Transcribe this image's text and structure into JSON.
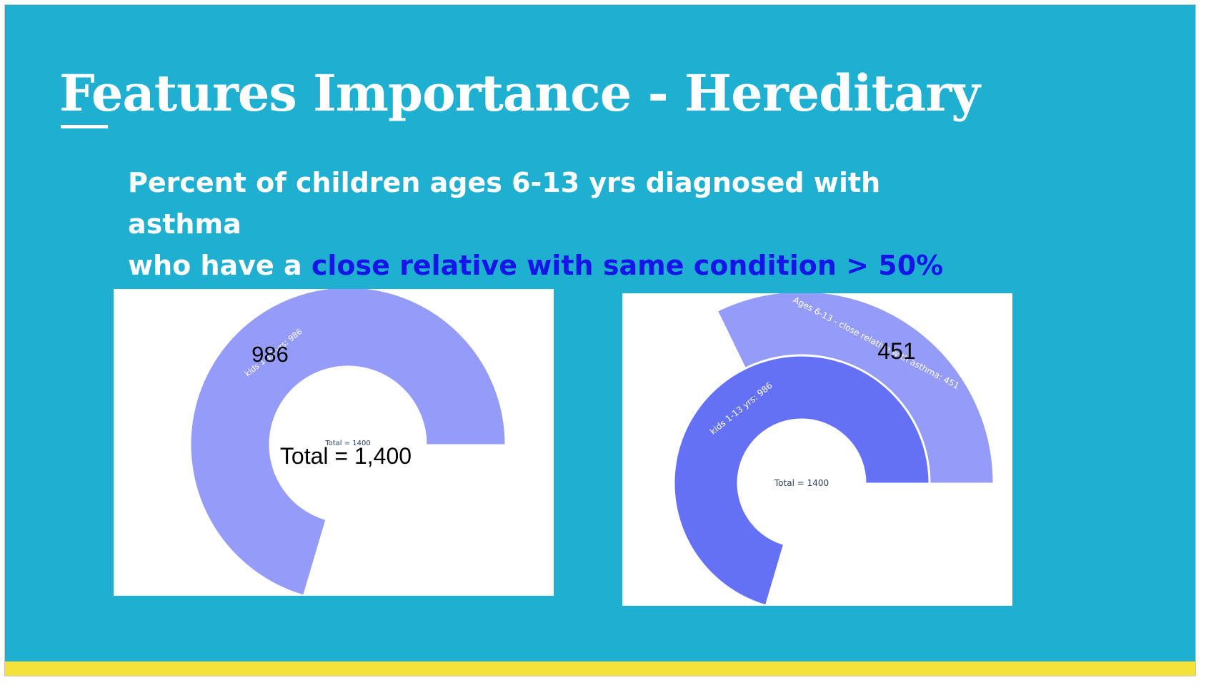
{
  "slide": {
    "title": "Features Importance - Hereditary",
    "subtitle_line1": "Percent of children ages 6-13 yrs diagnosed with asthma",
    "subtitle_line2_prefix": "who have a ",
    "subtitle_line2_highlight": "close relative with same condition > 50%"
  },
  "colors": {
    "background": "#1fafd1",
    "highlight": "#1515e8",
    "footer": "#f3e23a",
    "ring_light": "#959cf7",
    "ring_dark": "#6571f4"
  },
  "chart_data": [
    {
      "type": "pie",
      "subtype": "sunburst",
      "total": 1400,
      "center_label": "Total = 1400",
      "segments": [
        {
          "label": "kids 1-13 yrs: 986",
          "value": 986,
          "ring": 1,
          "color": "#959cf7"
        }
      ],
      "annotations": {
        "value_callout": "986",
        "total_callout": "Total = 1,400"
      }
    },
    {
      "type": "pie",
      "subtype": "sunburst",
      "total": 1400,
      "center_label": "Total = 1400",
      "segments": [
        {
          "label": "kids 1-13 yrs: 986",
          "value": 986,
          "ring": 1,
          "color": "#6571f4"
        },
        {
          "label": "Ages 6-13 - close relative with asthma: 451",
          "value": 451,
          "ring": 2,
          "color": "#959cf7"
        }
      ],
      "annotations": {
        "value_callout": "451"
      }
    }
  ]
}
